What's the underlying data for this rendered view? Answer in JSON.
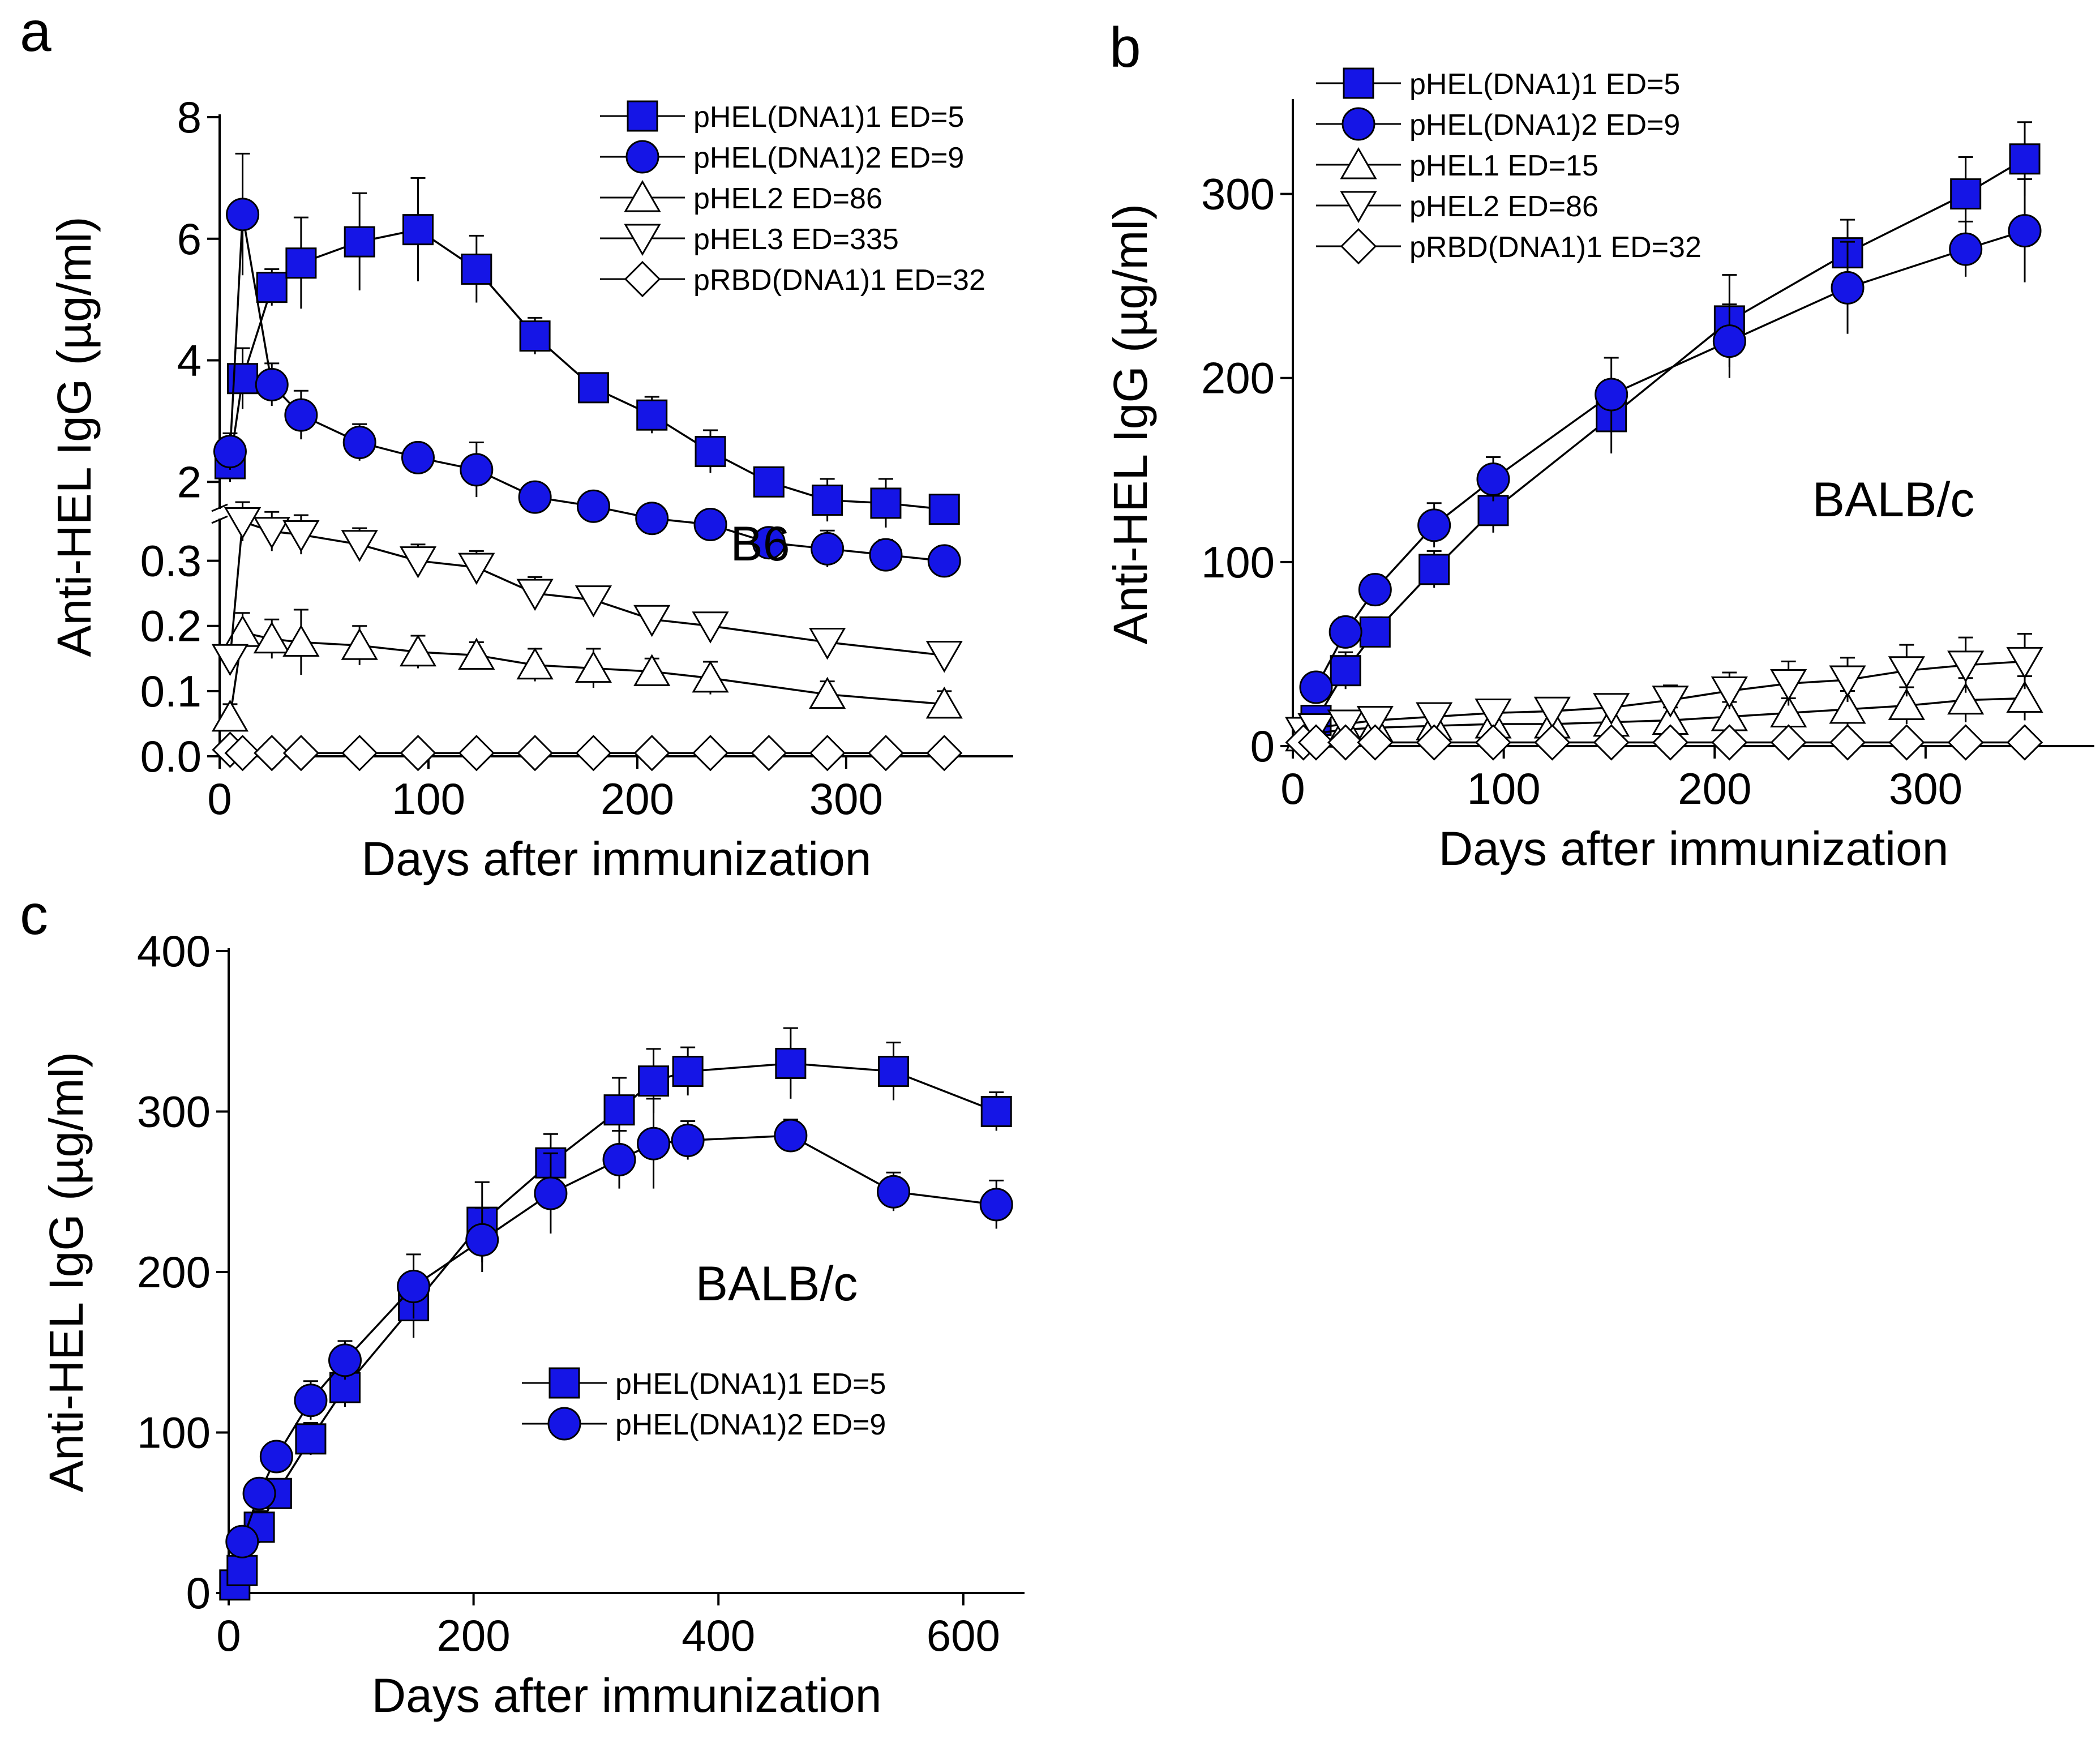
{
  "colors": {
    "filled": "#1515e6",
    "line": "#000000",
    "open_fill": "#ffffff"
  },
  "chart_data": [
    {
      "id": "a",
      "type": "line",
      "panel_label": "a",
      "annotation": "B6",
      "xlabel": "Days after immunization",
      "ylabel": "Anti-HEL IgG (µg/ml)",
      "xlim": [
        0,
        380
      ],
      "x_ticks": [
        0,
        100,
        200,
        300
      ],
      "y_axis_broken": true,
      "ylim_upper": [
        1.5,
        8
      ],
      "y_ticks_upper": [
        2,
        4,
        6,
        8
      ],
      "ylim_lower": [
        0,
        0.37
      ],
      "y_ticks_lower": [
        0.0,
        0.1,
        0.2,
        0.3
      ],
      "y_tick_labels_lower": [
        "0.0",
        "0.1",
        "0.2",
        "0.3"
      ],
      "legend_position": "top-right",
      "series": [
        {
          "name": "pHEL(DNA1)1 ED=5",
          "marker": "square",
          "filled": true,
          "segment": "upper",
          "x": [
            5,
            11,
            25,
            39,
            67,
            95,
            123,
            151,
            179,
            207,
            235,
            263,
            291,
            319,
            347
          ],
          "y": [
            2.3,
            3.7,
            5.2,
            5.6,
            5.95,
            6.15,
            5.5,
            4.4,
            3.55,
            3.1,
            2.5,
            2.0,
            1.7,
            1.65,
            1.55
          ],
          "err": [
            0.3,
            0.5,
            0.3,
            0.75,
            0.8,
            0.85,
            0.55,
            0.3,
            0.15,
            0.3,
            0.35,
            0.2,
            0.35,
            0.4,
            0.2
          ]
        },
        {
          "name": "pHEL(DNA1)2 ED=9",
          "marker": "circle",
          "filled": true,
          "segment": "upper",
          "x": [
            5,
            11,
            25,
            39,
            67,
            95,
            123,
            151,
            179,
            207,
            235,
            263,
            291,
            319,
            347
          ],
          "y": [
            2.5,
            6.4,
            3.6,
            3.1,
            2.65,
            2.4,
            2.2,
            1.75,
            1.6,
            1.4,
            1.3,
            1.0,
            0.9,
            0.8,
            0.7
          ],
          "err": [
            0.3,
            1.0,
            0.35,
            0.4,
            0.3,
            0.2,
            0.45,
            0.2,
            0.2,
            0.2,
            0.2,
            0.2,
            0.3,
            0.25,
            0.2
          ]
        },
        {
          "name": "pHEL2 ED=86",
          "marker": "triangle-up",
          "filled": false,
          "segment": "lower",
          "x": [
            5,
            11,
            25,
            39,
            67,
            95,
            123,
            151,
            179,
            207,
            235,
            291,
            347
          ],
          "y": [
            0.06,
            0.19,
            0.18,
            0.175,
            0.17,
            0.16,
            0.155,
            0.14,
            0.135,
            0.13,
            0.12,
            0.095,
            0.08
          ],
          "err": [
            0.02,
            0.03,
            0.03,
            0.05,
            0.03,
            0.025,
            0.02,
            0.025,
            0.03,
            0.02,
            0.025,
            0.02,
            0.02
          ]
        },
        {
          "name": "pHEL3 ED=335",
          "marker": "triangle-down",
          "filled": false,
          "segment": "lower",
          "x": [
            5,
            11,
            25,
            39,
            67,
            95,
            123,
            151,
            179,
            207,
            235,
            291,
            347
          ],
          "y": [
            0.15,
            0.36,
            0.345,
            0.34,
            0.325,
            0.3,
            0.29,
            0.25,
            0.24,
            0.21,
            0.2,
            0.175,
            0.155
          ],
          "err": [
            0.02,
            0.03,
            0.03,
            0.03,
            0.025,
            0.025,
            0.025,
            0.025,
            0.02,
            0.02,
            0.02,
            0.02,
            0.015
          ]
        },
        {
          "name": "pRBD(DNA1)1 ED=32",
          "marker": "diamond",
          "filled": false,
          "segment": "lower",
          "x": [
            5,
            11,
            25,
            39,
            67,
            95,
            123,
            151,
            179,
            207,
            235,
            263,
            291,
            319,
            347
          ],
          "y": [
            0.01,
            0.005,
            0.005,
            0.005,
            0.005,
            0.005,
            0.005,
            0.005,
            0.005,
            0.005,
            0.005,
            0.005,
            0.005,
            0.005,
            0.005
          ],
          "err": [
            0.005,
            0.005,
            0.005,
            0.005,
            0.005,
            0.005,
            0.005,
            0.005,
            0.005,
            0.005,
            0.005,
            0.005,
            0.005,
            0.005,
            0.005
          ]
        }
      ]
    },
    {
      "id": "b",
      "type": "line",
      "panel_label": "b",
      "annotation": "BALB/c",
      "xlabel": "Days after immunization",
      "ylabel": "Anti-HEL IgG (µg/ml)",
      "xlim": [
        0,
        380
      ],
      "ylim": [
        0,
        350
      ],
      "x_ticks": [
        0,
        100,
        200,
        300
      ],
      "y_ticks": [
        0,
        100,
        200,
        300
      ],
      "legend_position": "top-left",
      "series": [
        {
          "name": "pHEL(DNA1)1 ED=5",
          "marker": "square",
          "filled": true,
          "x": [
            11,
            25,
            39,
            67,
            95,
            151,
            207,
            263,
            319,
            347
          ],
          "y": [
            14,
            41,
            62,
            96,
            128,
            179,
            231,
            268,
            300,
            319
          ],
          "err": [
            8,
            10,
            8,
            10,
            12,
            20,
            25,
            18,
            20,
            20
          ]
        },
        {
          "name": "pHEL(DNA1)2 ED=9",
          "marker": "circle",
          "filled": true,
          "x": [
            11,
            25,
            39,
            67,
            95,
            151,
            207,
            263,
            319,
            347
          ],
          "y": [
            32,
            62,
            85,
            120,
            145,
            191,
            220,
            249,
            270,
            280
          ],
          "err": [
            5,
            8,
            8,
            12,
            12,
            20,
            20,
            25,
            15,
            28
          ]
        },
        {
          "name": "pHEL1 ED=15",
          "marker": "triangle-up",
          "filled": false,
          "x": [
            5,
            11,
            25,
            39,
            67,
            95,
            123,
            151,
            179,
            207,
            235,
            263,
            291,
            319,
            347
          ],
          "y": [
            5,
            7,
            9,
            10,
            11,
            12,
            12,
            13,
            14,
            16,
            18,
            20,
            22,
            25,
            26
          ],
          "err": [
            3,
            3,
            3,
            4,
            4,
            5,
            6,
            6,
            7,
            8,
            8,
            10,
            10,
            12,
            12
          ]
        },
        {
          "name": "pHEL2 ED=86",
          "marker": "triangle-down",
          "filled": false,
          "x": [
            5,
            11,
            25,
            39,
            67,
            95,
            123,
            151,
            179,
            207,
            235,
            263,
            291,
            319,
            347
          ],
          "y": [
            8,
            10,
            12,
            14,
            16,
            18,
            19,
            21,
            25,
            30,
            34,
            36,
            41,
            44,
            46
          ],
          "err": [
            4,
            4,
            5,
            5,
            6,
            6,
            7,
            7,
            8,
            10,
            12,
            12,
            14,
            15,
            15
          ]
        },
        {
          "name": "pRBD(DNA1)1 ED=32",
          "marker": "diamond",
          "filled": false,
          "x": [
            5,
            11,
            25,
            39,
            67,
            95,
            123,
            151,
            179,
            207,
            235,
            263,
            291,
            319,
            347
          ],
          "y": [
            2,
            2,
            2,
            2,
            2,
            2,
            2,
            2,
            2,
            2,
            2,
            2,
            2,
            2,
            2
          ],
          "err": [
            1,
            1,
            1,
            1,
            1,
            1,
            1,
            1,
            1,
            1,
            1,
            1,
            1,
            1,
            1
          ]
        }
      ]
    },
    {
      "id": "c",
      "type": "line",
      "panel_label": "c",
      "annotation": "BALB/c",
      "xlabel": "Days after immunization",
      "ylabel": "Anti-HEL IgG (µg/ml)",
      "xlim": [
        0,
        650
      ],
      "ylim": [
        0,
        400
      ],
      "x_ticks": [
        0,
        200,
        400,
        600
      ],
      "y_ticks": [
        0,
        100,
        200,
        300,
        400
      ],
      "legend_position": "center",
      "series": [
        {
          "name": "pHEL(DNA1)1 ED=5",
          "marker": "square",
          "filled": true,
          "x": [
            5,
            11,
            25,
            39,
            67,
            95,
            151,
            207,
            263,
            319,
            347,
            375,
            459,
            543,
            627
          ],
          "y": [
            5,
            14,
            41,
            62,
            96,
            128,
            179,
            231,
            268,
            301,
            319,
            325,
            330,
            325,
            300
          ],
          "err": [
            3,
            8,
            10,
            8,
            10,
            12,
            20,
            25,
            18,
            20,
            20,
            15,
            22,
            18,
            12
          ]
        },
        {
          "name": "pHEL(DNA1)2 ED=9",
          "marker": "circle",
          "filled": true,
          "x": [
            11,
            25,
            39,
            67,
            95,
            151,
            207,
            263,
            319,
            347,
            375,
            459,
            543,
            627
          ],
          "y": [
            32,
            62,
            85,
            120,
            145,
            191,
            220,
            249,
            270,
            280,
            282,
            285,
            250,
            242
          ],
          "err": [
            5,
            8,
            8,
            12,
            12,
            20,
            20,
            25,
            18,
            28,
            12,
            10,
            12,
            15
          ]
        }
      ]
    }
  ]
}
